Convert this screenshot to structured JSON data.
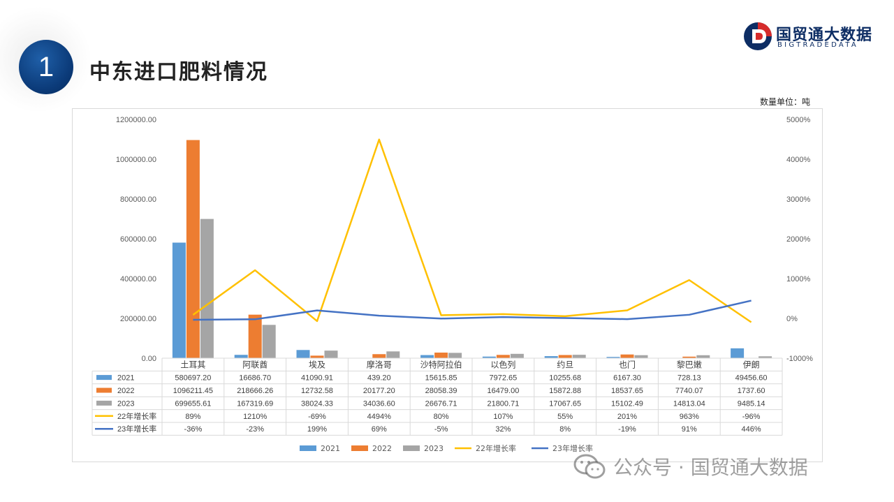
{
  "header": {
    "section_number": "1",
    "title": "中东进口肥料情况",
    "brand_name": "国贸通大数据",
    "brand_sub": "BIGTRADEDATA"
  },
  "unit_label": "数量单位：吨",
  "watermark": "公众号 · 国贸通大数据",
  "colors": {
    "s2021": "#5b9bd5",
    "s2022": "#ed7d31",
    "s2023": "#a5a5a5",
    "g22": "#ffc000",
    "g23": "#4472c4"
  },
  "chart_data": {
    "type": "bar",
    "categories": [
      "土耳其",
      "阿联酋",
      "埃及",
      "摩洛哥",
      "沙特阿拉伯",
      "以色列",
      "约旦",
      "也门",
      "黎巴嫩",
      "伊朗"
    ],
    "y_left_ticks": [
      "0.00",
      "200000.00",
      "400000.00",
      "600000.00",
      "800000.00",
      "1000000.00",
      "1200000.00"
    ],
    "y_right_ticks": [
      "-1000%",
      "0%",
      "1000%",
      "2000%",
      "3000%",
      "4000%",
      "5000%"
    ],
    "ylim": [
      0,
      1200000
    ],
    "y2lim": [
      -1000,
      5000
    ],
    "series": [
      {
        "name": "2021",
        "kind": "bar",
        "color_key": "s2021",
        "values": [
          580697.2,
          16686.7,
          41090.91,
          439.2,
          15615.85,
          7972.65,
          10255.68,
          6167.3,
          728.13,
          49456.6
        ],
        "labels": [
          "580697.20",
          "16686.70",
          "41090.91",
          "439.20",
          "15615.85",
          "7972.65",
          "10255.68",
          "6167.30",
          "728.13",
          "49456.60"
        ]
      },
      {
        "name": "2022",
        "kind": "bar",
        "color_key": "s2022",
        "values": [
          1096211.45,
          218666.26,
          12732.58,
          20177.2,
          28058.39,
          16479.0,
          15872.88,
          18537.65,
          7740.07,
          1737.6
        ],
        "labels": [
          "1096211.45",
          "218666.26",
          "12732.58",
          "20177.20",
          "28058.39",
          "16479.00",
          "15872.88",
          "18537.65",
          "7740.07",
          "1737.60"
        ]
      },
      {
        "name": "2023",
        "kind": "bar",
        "color_key": "s2023",
        "values": [
          699655.61,
          167319.69,
          38024.33,
          34036.6,
          26676.71,
          21800.71,
          17067.65,
          15102.49,
          14813.04,
          9485.14
        ],
        "labels": [
          "699655.61",
          "167319.69",
          "38024.33",
          "34036.60",
          "26676.71",
          "21800.71",
          "17067.65",
          "15102.49",
          "14813.04",
          "9485.14"
        ]
      },
      {
        "name": "22年增长率",
        "kind": "line",
        "color_key": "g22",
        "values": [
          89,
          1210,
          -69,
          4494,
          80,
          107,
          55,
          201,
          963,
          -96
        ],
        "labels": [
          "89%",
          "1210%",
          "-69%",
          "4494%",
          "80%",
          "107%",
          "55%",
          "201%",
          "963%",
          "-96%"
        ]
      },
      {
        "name": "23年增长率",
        "kind": "line",
        "color_key": "g23",
        "values": [
          -36,
          -23,
          199,
          69,
          -5,
          32,
          8,
          -19,
          91,
          446
        ],
        "labels": [
          "-36%",
          "-23%",
          "199%",
          "69%",
          "-5%",
          "32%",
          "8%",
          "-19%",
          "91%",
          "446%"
        ]
      }
    ],
    "legend_position": "bottom"
  }
}
